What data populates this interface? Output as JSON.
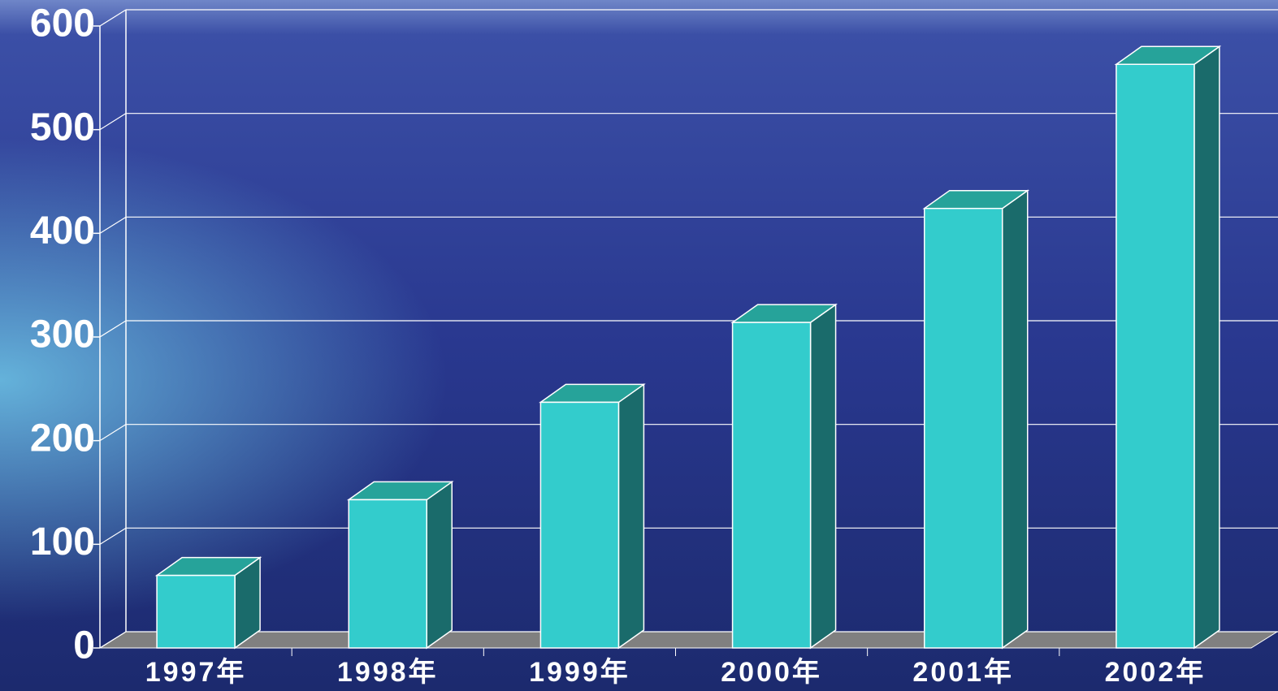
{
  "chart_data": {
    "type": "bar",
    "categories": [
      "1997年",
      "1998年",
      "1999年",
      "2000年",
      "2001年",
      "2002年"
    ],
    "values": [
      70,
      143,
      237,
      314,
      424,
      563
    ],
    "color": "#33cccc",
    "ylim": [
      0,
      600
    ],
    "yticks": [
      0,
      100,
      200,
      300,
      400,
      500,
      600
    ],
    "grid": true
  }
}
